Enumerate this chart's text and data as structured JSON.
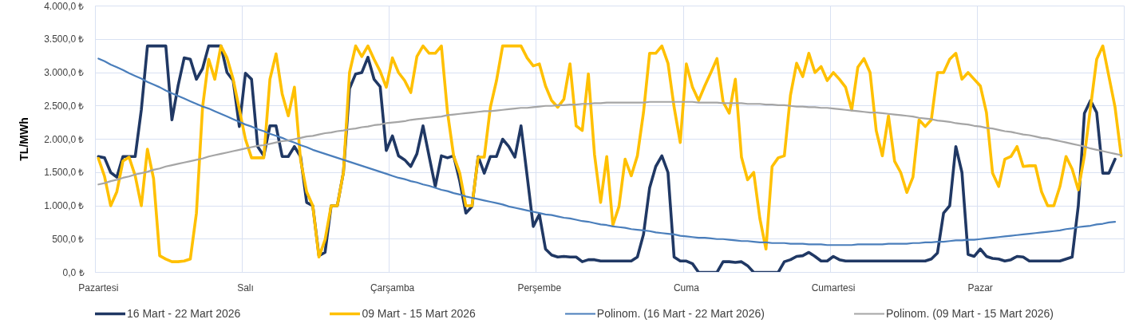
{
  "chart_data": {
    "type": "line",
    "ylabel": "TL/MWh",
    "grid": true,
    "legend": "bottom",
    "categories": [
      "Pazartesi",
      null,
      null,
      null,
      null,
      null,
      null,
      null,
      null,
      null,
      null,
      null,
      null,
      null,
      null,
      null,
      null,
      null,
      null,
      null,
      null,
      null,
      null,
      null,
      "Salı",
      null,
      null,
      null,
      null,
      null,
      null,
      null,
      null,
      null,
      null,
      null,
      null,
      null,
      null,
      null,
      null,
      null,
      null,
      null,
      null,
      null,
      null,
      null,
      "Çarşamba",
      null,
      null,
      null,
      null,
      null,
      null,
      null,
      null,
      null,
      null,
      null,
      null,
      null,
      null,
      null,
      null,
      null,
      null,
      null,
      null,
      null,
      null,
      null,
      "Perşembe",
      null,
      null,
      null,
      null,
      null,
      null,
      null,
      null,
      null,
      null,
      null,
      null,
      null,
      null,
      null,
      null,
      null,
      null,
      null,
      null,
      null,
      null,
      null,
      "Cuma",
      null,
      null,
      null,
      null,
      null,
      null,
      null,
      null,
      null,
      null,
      null,
      null,
      null,
      null,
      null,
      null,
      null,
      null,
      null,
      null,
      null,
      null,
      null,
      "Cumartesi",
      null,
      null,
      null,
      null,
      null,
      null,
      null,
      null,
      null,
      null,
      null,
      null,
      null,
      null,
      null,
      null,
      null,
      null,
      null,
      null,
      null,
      null,
      null,
      "Pazar",
      null,
      null,
      null,
      null,
      null,
      null,
      null,
      null,
      null,
      null,
      null,
      null,
      null,
      null,
      null,
      null,
      null,
      null,
      null,
      null,
      null,
      null,
      null
    ],
    "ylim": [
      0,
      4000
    ],
    "yticks": [
      {
        "value": 0,
        "label": "0,0 ₺"
      },
      {
        "value": 500,
        "label": "500,0 ₺"
      },
      {
        "value": 1000,
        "label": "1.000,0 ₺"
      },
      {
        "value": 1500,
        "label": "1.500,0 ₺"
      },
      {
        "value": 2000,
        "label": "2.000,0 ₺"
      },
      {
        "value": 2500,
        "label": "2.500,0 ₺"
      },
      {
        "value": 3000,
        "label": "3.000,0 ₺"
      },
      {
        "value": 3500,
        "label": "3.500,0 ₺"
      },
      {
        "value": 4000,
        "label": "4.000,0 ₺"
      }
    ],
    "series": [
      {
        "name": "16 Mart - 22 Mart 2026",
        "color": "#203864",
        "values": [
          1740,
          1720,
          1500,
          1430,
          1740,
          1740,
          1740,
          2440,
          3400,
          3400,
          3400,
          3400,
          2290,
          2800,
          3220,
          3200,
          2900,
          3060,
          3400,
          3400,
          3400,
          3000,
          2880,
          2190,
          2990,
          2900,
          1890,
          1750,
          2200,
          2200,
          1740,
          1740,
          1890,
          1740,
          1050,
          1000,
          250,
          300,
          1000,
          1000,
          1500,
          2760,
          2980,
          3000,
          3230,
          2900,
          2790,
          1830,
          2050,
          1750,
          1690,
          1590,
          1780,
          2200,
          1740,
          1290,
          1750,
          1720,
          1750,
          1370,
          890,
          990,
          1740,
          1490,
          1740,
          1740,
          2000,
          1890,
          1730,
          2200,
          1450,
          690,
          870,
          350,
          260,
          230,
          240,
          230,
          230,
          160,
          190,
          190,
          170,
          170,
          170,
          170,
          170,
          170,
          230,
          570,
          1270,
          1590,
          1750,
          1500,
          230,
          170,
          170,
          130,
          0,
          0,
          0,
          0,
          160,
          160,
          150,
          160,
          100,
          0,
          0,
          0,
          0,
          0,
          160,
          190,
          240,
          250,
          300,
          240,
          170,
          170,
          240,
          190,
          170,
          170,
          170,
          170,
          170,
          170,
          170,
          170,
          170,
          170,
          170,
          170,
          170,
          170,
          200,
          290,
          890,
          1000,
          1890,
          1500,
          270,
          240,
          350,
          240,
          210,
          200,
          170,
          190,
          240,
          230,
          170,
          170,
          170,
          170,
          170,
          170,
          200,
          230,
          1000,
          2390,
          2580,
          2400,
          1490,
          1490,
          1700,
          null
        ]
      },
      {
        "name": "09 Mart - 15 Mart 2026",
        "color": "#ffc000",
        "values": [
          1710,
          1440,
          1000,
          1210,
          1670,
          1730,
          1450,
          1000,
          1850,
          1410,
          250,
          200,
          160,
          160,
          170,
          200,
          890,
          2480,
          3200,
          2900,
          3400,
          3220,
          2900,
          2450,
          2000,
          1720,
          1720,
          1720,
          2900,
          3280,
          2680,
          2350,
          2780,
          1690,
          1210,
          1000,
          230,
          490,
          1000,
          1000,
          1500,
          3000,
          3400,
          3240,
          3400,
          3200,
          3020,
          2780,
          3220,
          3000,
          2880,
          2700,
          3240,
          3400,
          3290,
          3290,
          3400,
          2400,
          1750,
          1490,
          1000,
          1000,
          1730,
          1730,
          2480,
          2880,
          3400,
          3400,
          3400,
          3400,
          3220,
          3100,
          3130,
          2800,
          2580,
          2480,
          2600,
          3130,
          2200,
          2130,
          2980,
          1770,
          1050,
          1740,
          710,
          990,
          1700,
          1450,
          1750,
          2400,
          3290,
          3290,
          3400,
          3140,
          2480,
          1950,
          3130,
          2780,
          2580,
          2800,
          3000,
          3210,
          2560,
          2390,
          2900,
          1730,
          1390,
          1500,
          810,
          350,
          1590,
          1720,
          1750,
          2660,
          3140,
          2940,
          3290,
          3000,
          3090,
          2880,
          3000,
          2900,
          2780,
          2440,
          3080,
          3210,
          3000,
          2130,
          1750,
          2350,
          1670,
          1500,
          1200,
          1430,
          2290,
          2190,
          2290,
          3000,
          3000,
          3200,
          3290,
          2900,
          3000,
          2900,
          2800,
          2400,
          1490,
          1290,
          1700,
          1740,
          1890,
          1590,
          1600,
          1600,
          1210,
          1000,
          1000,
          1290,
          1740,
          1550,
          1240,
          1750,
          2480,
          3200,
          3400,
          2940,
          2480,
          1750
        ]
      },
      {
        "name": "Polinom. (16 Mart - 22 Mart 2026)",
        "type": "line",
        "color": "#4a7ebb",
        "values": [
          3210,
          3170,
          3120,
          3080,
          3040,
          2990,
          2950,
          2910,
          2860,
          2820,
          2780,
          2730,
          2690,
          2650,
          2610,
          2570,
          2530,
          2490,
          2460,
          2420,
          2380,
          2340,
          2300,
          2260,
          2220,
          2190,
          2150,
          2120,
          2080,
          2050,
          2020,
          1980,
          1950,
          1910,
          1880,
          1840,
          1810,
          1780,
          1750,
          1720,
          1690,
          1660,
          1630,
          1600,
          1570,
          1540,
          1510,
          1480,
          1450,
          1420,
          1400,
          1370,
          1350,
          1320,
          1300,
          1270,
          1240,
          1220,
          1190,
          1170,
          1140,
          1120,
          1100,
          1080,
          1060,
          1040,
          1020,
          990,
          970,
          950,
          930,
          910,
          890,
          870,
          860,
          840,
          820,
          810,
          790,
          770,
          760,
          740,
          720,
          710,
          690,
          680,
          670,
          650,
          640,
          630,
          620,
          600,
          590,
          580,
          570,
          550,
          540,
          530,
          520,
          520,
          510,
          500,
          500,
          490,
          480,
          470,
          470,
          460,
          450,
          450,
          440,
          440,
          440,
          430,
          430,
          430,
          420,
          420,
          420,
          410,
          410,
          410,
          410,
          410,
          420,
          420,
          420,
          420,
          420,
          430,
          430,
          430,
          430,
          440,
          440,
          450,
          450,
          460,
          460,
          470,
          480,
          480,
          490,
          490,
          500,
          510,
          520,
          530,
          540,
          550,
          560,
          570,
          580,
          590,
          600,
          610,
          620,
          630,
          650,
          660,
          680,
          690,
          700,
          720,
          730,
          750,
          760,
          null
        ]
      },
      {
        "name": "Polinom. (09 Mart - 15 Mart 2026)",
        "type": "line",
        "color": "#a5a5a5",
        "values": [
          1320,
          1340,
          1370,
          1390,
          1420,
          1440,
          1470,
          1490,
          1510,
          1540,
          1560,
          1590,
          1610,
          1630,
          1650,
          1670,
          1690,
          1710,
          1740,
          1760,
          1780,
          1800,
          1820,
          1840,
          1860,
          1880,
          1900,
          1910,
          1930,
          1950,
          1970,
          1980,
          2000,
          2020,
          2040,
          2050,
          2070,
          2090,
          2100,
          2120,
          2130,
          2150,
          2160,
          2180,
          2190,
          2210,
          2220,
          2240,
          2250,
          2260,
          2270,
          2290,
          2300,
          2310,
          2320,
          2330,
          2340,
          2360,
          2370,
          2380,
          2390,
          2400,
          2410,
          2420,
          2420,
          2430,
          2440,
          2450,
          2460,
          2470,
          2470,
          2480,
          2490,
          2500,
          2500,
          2510,
          2510,
          2520,
          2520,
          2530,
          2530,
          2540,
          2540,
          2550,
          2550,
          2550,
          2550,
          2550,
          2550,
          2550,
          2560,
          2560,
          2560,
          2560,
          2560,
          2560,
          2560,
          2560,
          2550,
          2550,
          2550,
          2550,
          2540,
          2540,
          2540,
          2540,
          2530,
          2530,
          2530,
          2520,
          2520,
          2510,
          2510,
          2500,
          2490,
          2490,
          2480,
          2480,
          2470,
          2470,
          2460,
          2450,
          2440,
          2430,
          2420,
          2410,
          2400,
          2400,
          2390,
          2380,
          2370,
          2360,
          2350,
          2340,
          2320,
          2310,
          2300,
          2280,
          2270,
          2260,
          2240,
          2230,
          2220,
          2200,
          2190,
          2170,
          2160,
          2140,
          2120,
          2110,
          2090,
          2070,
          2060,
          2040,
          2020,
          2010,
          1990,
          1970,
          1950,
          1930,
          1910,
          1890,
          1860,
          1840,
          1820,
          1800,
          1780,
          1760
        ]
      }
    ]
  }
}
